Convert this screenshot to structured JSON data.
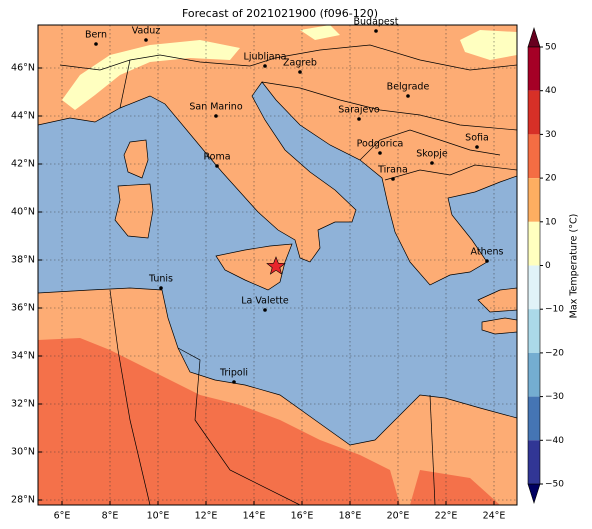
{
  "title": "Forecast of 2021021900 (f096-120)",
  "lon_ticks": [
    "6°E",
    "8°E",
    "10°E",
    "12°E",
    "14°E",
    "16°E",
    "18°E",
    "20°E",
    "22°E",
    "24°E"
  ],
  "lat_ticks": [
    "28°N",
    "30°N",
    "32°N",
    "34°N",
    "36°N",
    "38°N",
    "40°N",
    "42°N",
    "44°N",
    "46°N"
  ],
  "cities": [
    "Bern",
    "Vaduz",
    "Budapest",
    "Ljubljana",
    "Zagreb",
    "Belgrade",
    "San Marino",
    "Sarajevo",
    "Sofia",
    "Podgorica",
    "Skopje",
    "Roma",
    "Tirana",
    "Athens",
    "Tunis",
    "La Valette",
    "Tripoli"
  ],
  "colorbar": {
    "label": "Max Temperature (°C)",
    "ticks": [
      "50",
      "40",
      "30",
      "20",
      "10",
      "0",
      "−10",
      "−20",
      "−30",
      "−40",
      "−50"
    ]
  }
}
